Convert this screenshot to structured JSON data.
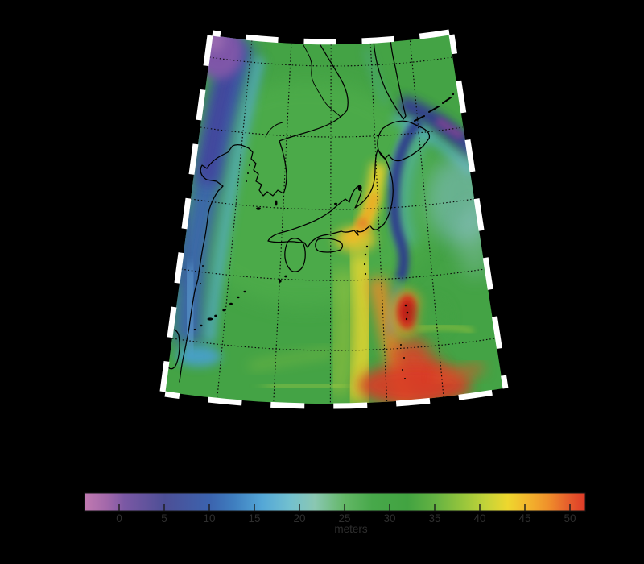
{
  "figure": {
    "background": "#000000",
    "kind": "geoid-height-map-japan-region"
  },
  "colorbar": {
    "unit": "meters",
    "ticks": [
      0,
      5,
      10,
      15,
      20,
      25,
      30,
      35,
      40,
      45,
      50
    ],
    "tick_label_color": "#2e2e2e",
    "gradient_stops": [
      {
        "at": 0.0,
        "color": "#c17ab1"
      },
      {
        "at": 0.045,
        "color": "#a268aa"
      },
      {
        "at": 0.08,
        "color": "#7a58a4"
      },
      {
        "at": 0.16,
        "color": "#4d4f96"
      },
      {
        "at": 0.25,
        "color": "#3b63ae"
      },
      {
        "at": 0.3,
        "color": "#3f7fc0"
      },
      {
        "at": 0.355,
        "color": "#54a7d7"
      },
      {
        "at": 0.41,
        "color": "#72c0cf"
      },
      {
        "at": 0.46,
        "color": "#8ac7b2"
      },
      {
        "at": 0.52,
        "color": "#63b766"
      },
      {
        "at": 0.575,
        "color": "#47a84a"
      },
      {
        "at": 0.645,
        "color": "#42a341"
      },
      {
        "at": 0.7,
        "color": "#64b243"
      },
      {
        "at": 0.755,
        "color": "#96c53c"
      },
      {
        "at": 0.8,
        "color": "#c2d339"
      },
      {
        "at": 0.845,
        "color": "#eed72e"
      },
      {
        "at": 0.885,
        "color": "#f3b62d"
      },
      {
        "at": 0.925,
        "color": "#f0912b"
      },
      {
        "at": 0.965,
        "color": "#e65f2c"
      },
      {
        "at": 1.0,
        "color": "#de3a28"
      }
    ]
  },
  "map": {
    "frame_style": "alternating white dashes on black",
    "graticule_style": "dotted black grid",
    "field_colors": {
      "low_purple": "#7a58a4",
      "trench_blue": "#2f3a8e",
      "base_green": "#44a345",
      "ridge_yellow": "#eed72e",
      "high_red": "#de3a28"
    }
  }
}
